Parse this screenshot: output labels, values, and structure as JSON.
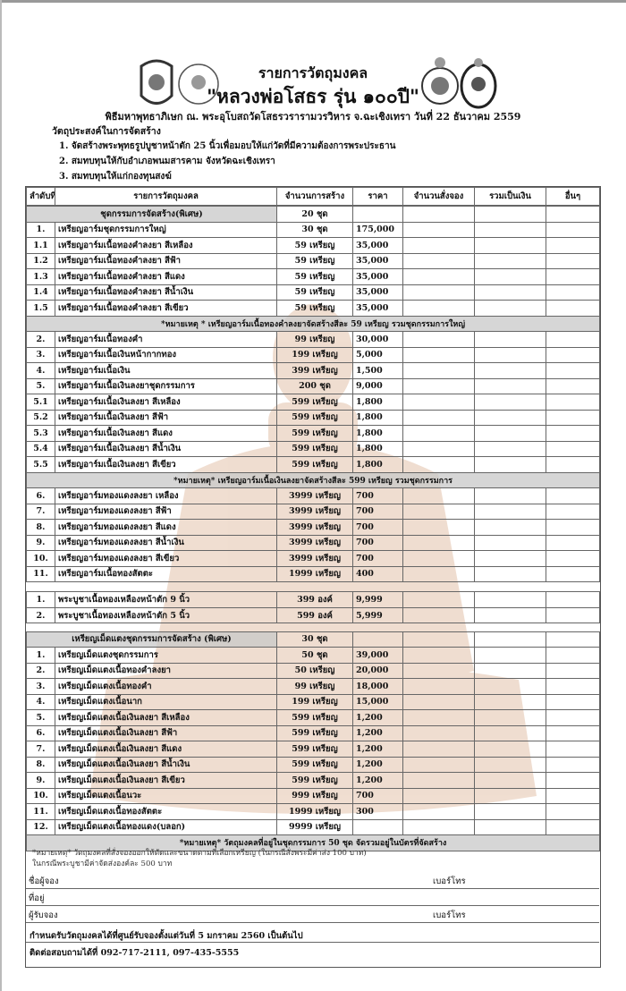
{
  "header": {
    "title": "รายการวัตถุมงคล",
    "subtitle": "\"หลวงพ่อโสธร รุ่น ๑๐๐ปี\"",
    "ceremony": "พิธีมหาพุทธาภิเษก ณ. พระอุโบสถวัดโสธรวรารามวรวิหาร จ.ฉะเชิงเทรา วันที่ 22 ธันวาคม 2559"
  },
  "purpose": {
    "heading": "วัตถุประสงค์ในการจัดสร้าง",
    "items": [
      "1. จัดสร้างพระพุทธรูปบูชาหน้าตัก 25 นิ้วเพื่อมอบให้แก่วัดที่มีความต้องการพระประธาน",
      "2. สมทบทุนให้กับอำเภอพนมสารคาม จังหวัดฉะเชิงเทรา",
      "3. สมทบทุนให้แก่กองทุนสงฆ์"
    ]
  },
  "table": {
    "columns": [
      "ลำดับที่",
      "รายการวัตถุมงคล",
      "จำนวนการสร้าง",
      "ราคา",
      "จำนวนสั่งจอง",
      "รวมเป็นเงิน",
      "อื่นๆ"
    ],
    "groups": [
      {
        "rows": [
          {
            "section": "ชุดกรรมการจัดสร้าง(พิเศษ)",
            "qty": "20 ชุด"
          },
          {
            "no": "1.",
            "item": "เหรียญอาร์มชุดกรรมการใหญ่",
            "qty": "30 ชุด",
            "price": "175,000"
          },
          {
            "no": "1.1",
            "item": "เหรียญอาร์มเนื้อทองคำลงยา สีเหลือง",
            "qty": "59 เหรียญ",
            "price": "35,000"
          },
          {
            "no": "1.2",
            "item": "เหรียญอาร์มเนื้อทองคำลงยา สีฟ้า",
            "qty": "59 เหรียญ",
            "price": "35,000"
          },
          {
            "no": "1.3",
            "item": "เหรียญอาร์มเนื้อทองคำลงยา สีแดง",
            "qty": "59 เหรียญ",
            "price": "35,000"
          },
          {
            "no": "1.4",
            "item": "เหรียญอาร์มเนื้อทองคำลงยา สีน้ำเงิน",
            "qty": "59 เหรียญ",
            "price": "35,000"
          },
          {
            "no": "1.5",
            "item": "เหรียญอาร์มเนื้อทองคำลงยา สีเขียว",
            "qty": "59 เหรียญ",
            "price": "35,000"
          },
          {
            "note": "*หมายเหตุ * เหรียญอาร์มเนื้อทองคำลงยาจัดสร้างสีละ 59 เหรียญ รวมชุดกรรมการใหญ่"
          },
          {
            "no": "2.",
            "item": "เหรียญอาร์มเนื้อทองคำ",
            "qty": "99 เหรียญ",
            "price": "30,000"
          },
          {
            "no": "3.",
            "item": "เหรียญอาร์มเนื้อเงินหน้ากากทอง",
            "qty": "199 เหรียญ",
            "price": "5,000"
          },
          {
            "no": "4.",
            "item": "เหรียญอาร์มเนื้อเงิน",
            "qty": "399 เหรียญ",
            "price": "1,500"
          },
          {
            "no": "5.",
            "item": "เหรียญอาร์มเนื้อเงินลงยาชุดกรรมการ",
            "qty": "200 ชุด",
            "price": "9,000"
          },
          {
            "no": "5.1",
            "item": "เหรียญอาร์มเนื้อเงินลงยา สีเหลือง",
            "qty": "599 เหรียญ",
            "price": "1,800"
          },
          {
            "no": "5.2",
            "item": "เหรียญอาร์มเนื้อเงินลงยา สีฟ้า",
            "qty": "599 เหรียญ",
            "price": "1,800"
          },
          {
            "no": "5.3",
            "item": "เหรียญอาร์มเนื้อเงินลงยา สีแดง",
            "qty": "599 เหรียญ",
            "price": "1,800"
          },
          {
            "no": "5.4",
            "item": "เหรียญอาร์มเนื้อเงินลงยา สีน้ำเงิน",
            "qty": "599 เหรียญ",
            "price": "1,800"
          },
          {
            "no": "5.5",
            "item": "เหรียญอาร์มเนื้อเงินลงยา สีเขียว",
            "qty": "599 เหรียญ",
            "price": "1,800"
          },
          {
            "note": "*หมายเหตุ* เหรียญอาร์มเนื้อเงินลงยาจัดสร้างสีละ 599 เหรียญ รวมชุดกรรมการ"
          },
          {
            "no": "6.",
            "item": "เหรียญอาร์มทองแดงลงยา เหลือง",
            "qty": "3999 เหรียญ",
            "price": "700"
          },
          {
            "no": "7.",
            "item": "เหรียญอาร์มทองแดงลงยา สีฟ้า",
            "qty": "3999 เหรียญ",
            "price": "700"
          },
          {
            "no": "8.",
            "item": "เหรียญอาร์มทองแดงลงยา สีแดง",
            "qty": "3999 เหรียญ",
            "price": "700"
          },
          {
            "no": "9.",
            "item": "เหรียญอาร์มทองแดงลงยา สีน้ำเงิน",
            "qty": "3999 เหรียญ",
            "price": "700"
          },
          {
            "no": "10.",
            "item": "เหรียญอาร์มทองแดงลงยา สีเขียว",
            "qty": "3999 เหรียญ",
            "price": "700"
          },
          {
            "no": "11.",
            "item": "เหรียญอาร์มเนื้อทองสัตตะ",
            "qty": "1999 เหรียญ",
            "price": "400"
          }
        ]
      },
      {
        "rows": [
          {
            "no": "1.",
            "item": "พระบูชาเนื้อทองเหลืองหน้าตัก 9 นิ้ว",
            "qty": "399 องค์",
            "price": "9,999"
          },
          {
            "no": "2.",
            "item": "พระบูชาเนื้อทองเหลืองหน้าตัก 5 นิ้ว",
            "qty": "599 องค์",
            "price": "5,999"
          }
        ]
      },
      {
        "rows": [
          {
            "section": "เหรียญเม็ดแตงชุดกรรมการจัดสร้าง (พิเศษ)",
            "qty": "30 ชุด"
          },
          {
            "no": "1.",
            "item": "เหรียญเม็ดแตงชุดกรรมการ",
            "qty": "50 ชุด",
            "price": "39,000"
          },
          {
            "no": "2.",
            "item": "เหรียญเม็ดแตงเนื้อทองคำลงยา",
            "qty": "50 เหรียญ",
            "price": "20,000"
          },
          {
            "no": "3.",
            "item": "เหรียญเม็ดแตงเนื้อทองคำ",
            "qty": "99 เหรียญ",
            "price": "18,000"
          },
          {
            "no": "4.",
            "item": "เหรียญเม็ดแตงเนื้อนาก",
            "qty": "199 เหรียญ",
            "price": "15,000"
          },
          {
            "no": "5.",
            "item": "เหรียญเม็ดแตงเนื้อเงินลงยา สีเหลือง",
            "qty": "599 เหรียญ",
            "price": "1,200"
          },
          {
            "no": "6.",
            "item": "เหรียญเม็ดแตงเนื้อเงินลงยา สีฟ้า",
            "qty": "599 เหรียญ",
            "price": "1,200"
          },
          {
            "no": "7.",
            "item": "เหรียญเม็ดแตงเนื้อเงินลงยา สีแดง",
            "qty": "599 เหรียญ",
            "price": "1,200"
          },
          {
            "no": "8.",
            "item": "เหรียญเม็ดแตงเนื้อเงินลงยา สีน้ำเงิน",
            "qty": "599 เหรียญ",
            "price": "1,200"
          },
          {
            "no": "9.",
            "item": "เหรียญเม็ดแตงเนื้อเงินลงยา สีเขียว",
            "qty": "599 เหรียญ",
            "price": "1,200"
          },
          {
            "no": "10.",
            "item": "เหรียญเม็ดแตงเนื้อนวะ",
            "qty": "999 เหรียญ",
            "price": "700"
          },
          {
            "no": "11.",
            "item": "เหรียญเม็ดแตงเนื้อทองสัตตะ",
            "qty": "1999 เหรียญ",
            "price": "300"
          },
          {
            "no": "12.",
            "item": "เหรียญเม็ดแตงเนื้อทองแดง(บลอก)",
            "qty": "9999 เหรียญ"
          },
          {
            "note": "*หมายเหตุ* วัตถุมงคลที่อยู่ในชุดกรรมการ 50 ชุด จัดรวมอยู่ในบัตรที่จัดสร้าง"
          }
        ]
      }
    ]
  },
  "remarks": [
    "*หมายเหตุ* วัตถุมงคลที่สั่งจองออกให้ตัดและขนาดตามที่เลือกเหรียญ (ในกรณีสั่งพระมีค่าส่ง 100 บาท)",
    "ในกรณีพระบูชามีค่าจัดส่งองค์ละ 500 บาท"
  ],
  "form": {
    "name": "ชื่อผู้จอง",
    "phone": "เบอร์โทร",
    "address": "ที่อยู่",
    "receiver": "ผู้รับจอง",
    "receiver_phone": "เบอร์โทร"
  },
  "footer": {
    "pickup": "กำหนดรับวัตถุมงคลได้ที่ศูนย์รับจองตั้งแต่วันที่ 5 มกราคม 2560 เป็นต้นไป",
    "contact": "ติดต่อสอบถามได้ที่ 092-717-2111, 097-435-5555"
  }
}
